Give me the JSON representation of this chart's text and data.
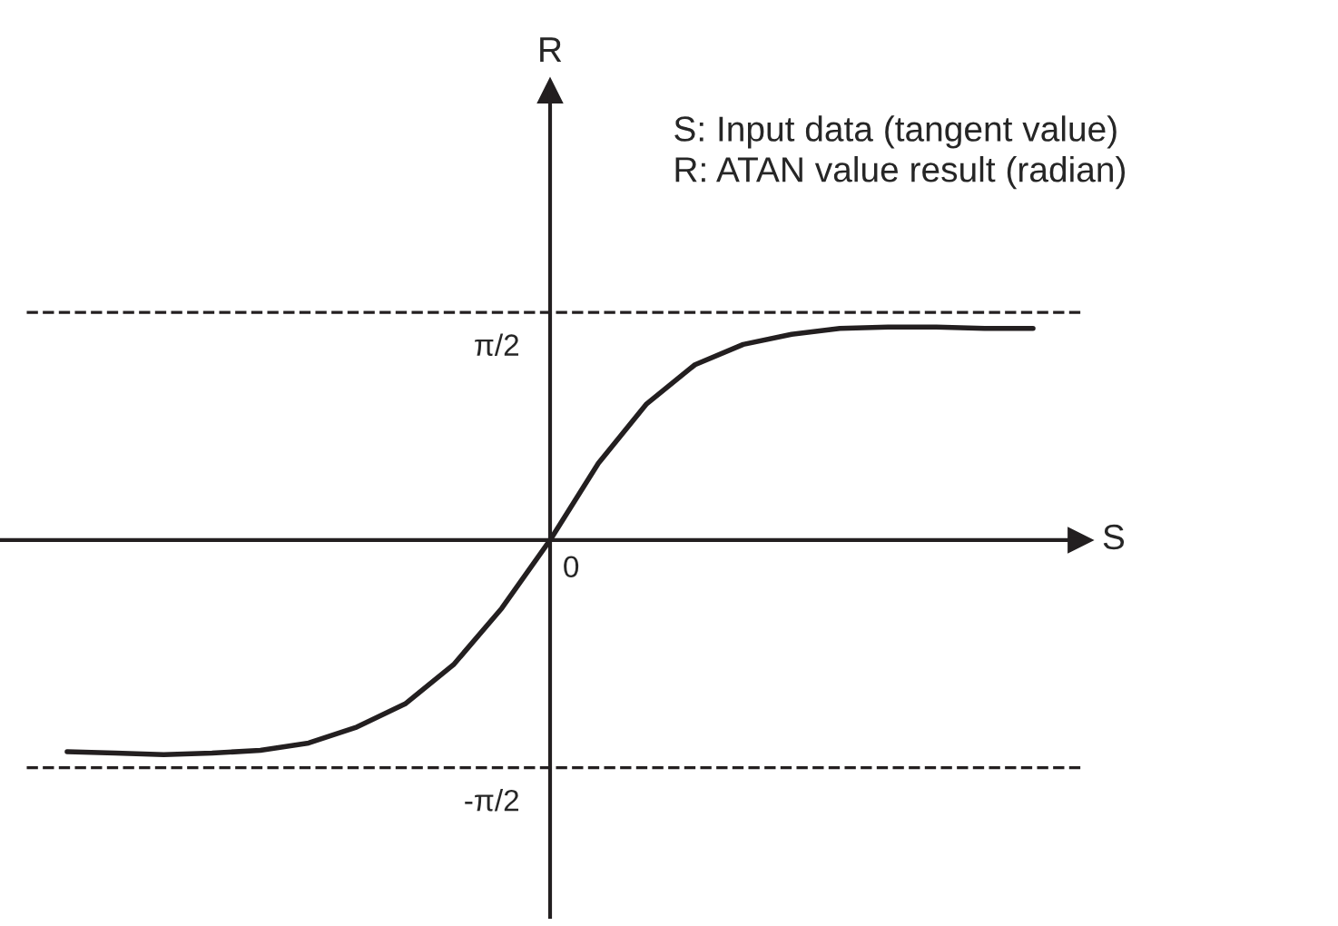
{
  "chart_data": {
    "type": "line",
    "xlabel": "S",
    "ylabel": "R",
    "annotations": [
      "S: Input data (tangent value)\nR: ATAN value result (radian)"
    ],
    "categories": [
      null,
      null,
      null,
      null,
      null,
      null,
      null,
      null,
      null,
      null,
      "0",
      null,
      null,
      null,
      null,
      null,
      null,
      null,
      null,
      null,
      null
    ],
    "series": [
      {
        "color": "#231f20",
        "values": [
          -1.46,
          -1.47,
          -1.48,
          -1.47,
          -1.45,
          -1.4,
          -1.29,
          -1.13,
          -0.86,
          -0.47,
          0,
          0.53,
          0.94,
          1.21,
          1.35,
          1.42,
          1.46,
          1.47,
          1.47,
          1.46,
          1.46
        ]
      }
    ],
    "ylim": [
      -2.6,
      3.1
    ],
    "yticks": [
      {
        "value": 1.5708,
        "label": "π/2"
      },
      {
        "value": -1.5708,
        "label": "-π/2"
      }
    ],
    "ref_lines": [
      {
        "axis": "y",
        "value": 1.5708,
        "color": "#231f20",
        "line_style": "dashed"
      },
      {
        "axis": "y",
        "value": -1.5708,
        "color": "#231f20",
        "line_style": "dashed"
      }
    ],
    "grid": false,
    "legend": false,
    "line_style": "solid",
    "marker": "none"
  }
}
